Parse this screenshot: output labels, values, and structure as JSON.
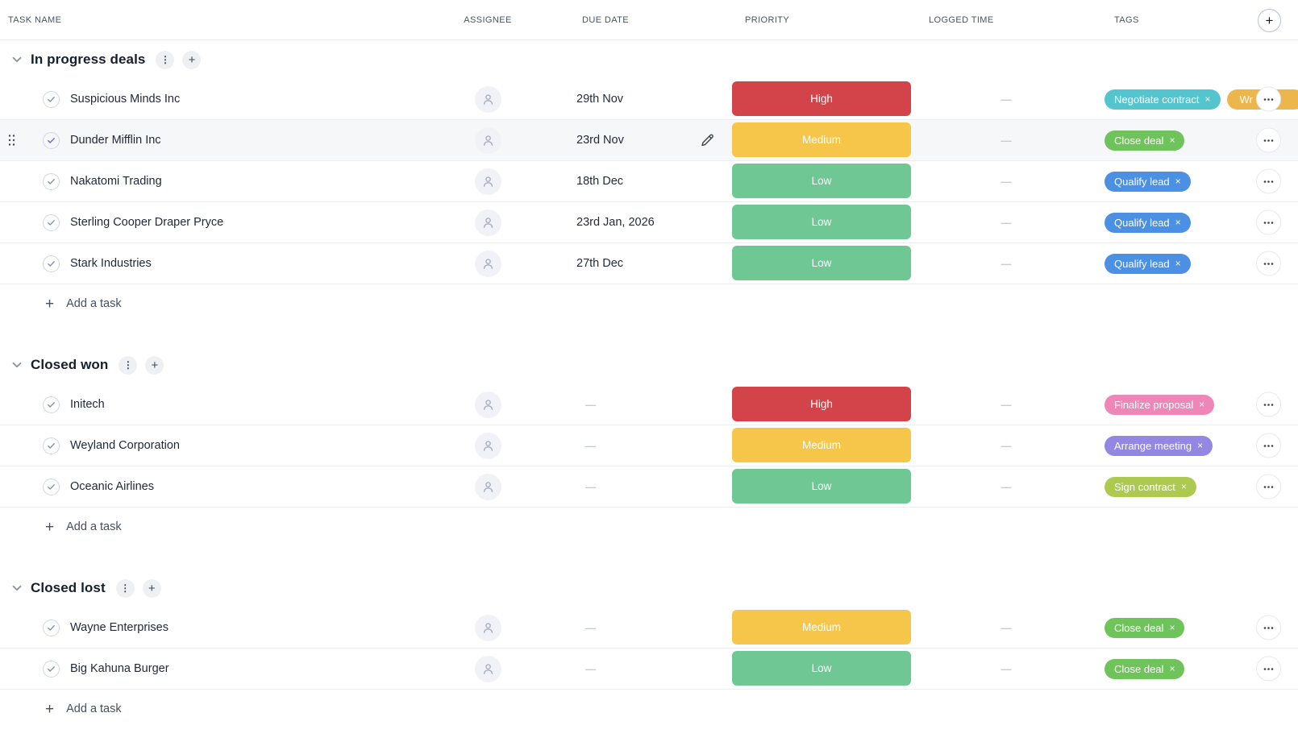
{
  "columns": [
    {
      "id": "task_name",
      "label": "TASK NAME"
    },
    {
      "id": "assignee",
      "label": "ASSIGNEE"
    },
    {
      "id": "due_date",
      "label": "DUE DATE"
    },
    {
      "id": "priority",
      "label": "PRIORITY"
    },
    {
      "id": "logged_time",
      "label": "LOGGED TIME"
    },
    {
      "id": "tags",
      "label": "TAGS"
    }
  ],
  "icons": {
    "add_column": "+",
    "group_collapse": "chevron-down",
    "group_menu": "⋮",
    "group_add": "+",
    "task_check": "check",
    "assignee_placeholder": "person",
    "row_actions": "horizontal-ellipsis",
    "drag_handle": "six-dots",
    "edit_due_date": "pencil",
    "tag_remove": "×",
    "empty_value": "—",
    "add_task_plus": "+"
  },
  "colors": {
    "priority": {
      "High": "#d2434a",
      "Medium": "#f6c64a",
      "Low": "#6fc794"
    },
    "hover_row_bg": "#f6f7f9",
    "tag_text": "#ffffff"
  },
  "groups": [
    {
      "title": "In progress deals",
      "add_task_label": "Add a task",
      "tasks": [
        {
          "name": "Suspicious Minds Inc",
          "due": "29th Nov",
          "priority": "High",
          "logged": "",
          "tags": [
            {
              "label": "Negotiate contract",
              "color": "#54c5ce"
            },
            {
              "label": "Wr",
              "color": "#ecb64d",
              "truncated": true
            }
          ]
        },
        {
          "name": "Dunder Mifflin Inc",
          "due": "23rd Nov",
          "priority": "Medium",
          "logged": "",
          "hovered": true,
          "tags": [
            {
              "label": "Close deal",
              "color": "#6ec45a"
            }
          ]
        },
        {
          "name": "Nakatomi Trading",
          "due": "18th Dec",
          "priority": "Low",
          "logged": "",
          "tags": [
            {
              "label": "Qualify lead",
              "color": "#4b90e2"
            }
          ]
        },
        {
          "name": "Sterling Cooper Draper Pryce",
          "due": "23rd Jan, 2026",
          "priority": "Low",
          "logged": "",
          "tags": [
            {
              "label": "Qualify lead",
              "color": "#4b90e2"
            }
          ]
        },
        {
          "name": "Stark Industries",
          "due": "27th Dec",
          "priority": "Low",
          "logged": "",
          "tags": [
            {
              "label": "Qualify lead",
              "color": "#4b90e2"
            }
          ]
        }
      ]
    },
    {
      "title": "Closed won",
      "add_task_label": "Add a task",
      "tasks": [
        {
          "name": "Initech",
          "due": "",
          "priority": "High",
          "logged": "",
          "tags": [
            {
              "label": "Finalize proposal",
              "color": "#ee87b8"
            }
          ]
        },
        {
          "name": "Weyland Corporation",
          "due": "",
          "priority": "Medium",
          "logged": "",
          "tags": [
            {
              "label": "Arrange meeting",
              "color": "#9287e2"
            }
          ]
        },
        {
          "name": "Oceanic Airlines",
          "due": "",
          "priority": "Low",
          "logged": "",
          "tags": [
            {
              "label": "Sign contract",
              "color": "#adc94f"
            }
          ]
        }
      ]
    },
    {
      "title": "Closed lost",
      "add_task_label": "Add a task",
      "tasks": [
        {
          "name": "Wayne Enterprises",
          "due": "",
          "priority": "Medium",
          "logged": "",
          "tags": [
            {
              "label": "Close deal",
              "color": "#6ec45a"
            }
          ]
        },
        {
          "name": "Big Kahuna Burger",
          "due": "",
          "priority": "Low",
          "logged": "",
          "tags": [
            {
              "label": "Close deal",
              "color": "#6ec45a"
            }
          ]
        }
      ]
    }
  ]
}
